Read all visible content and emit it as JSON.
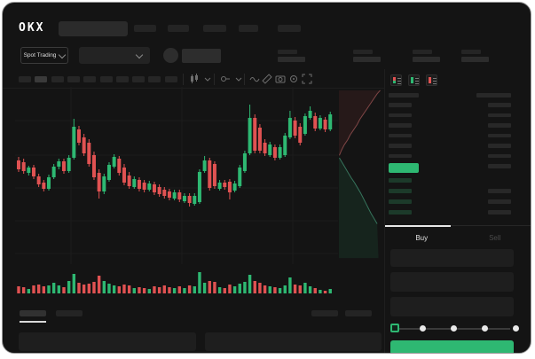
{
  "app": {
    "logo_text": "OKX"
  },
  "subnav": {
    "market_selector_label": "Spot Trading"
  },
  "order_book": {
    "view_modes": [
      "combined-book-icon",
      "bids-only-icon",
      "asks-only-icon"
    ],
    "ask_row_count": 7,
    "bid_row_count": 4,
    "tabs": {
      "buy_label": "Buy",
      "sell_label": "Sell"
    },
    "slider_stops": 5
  },
  "colors": {
    "green": "#2eb872",
    "red": "#e05252",
    "bid_row_green": "#1c3a2a",
    "depth_ask_line": "#a85a5a",
    "depth_bid_line": "#3f8a6d",
    "grid": "#1c1c1c"
  },
  "placeholders": {
    "topnav_items": 5,
    "stat_groups": 4,
    "timeframe_buttons": 10,
    "active_timeframe_index": 1
  },
  "chart_data": {
    "type": "candlestick",
    "title": "",
    "xlabel": "",
    "ylabel": "",
    "note": "no axis labels visible; values in relative price units, volume in relative units",
    "grid": true,
    "candles_ohlcv": [
      [
        122,
        126,
        109,
        112,
        8
      ],
      [
        120,
        124,
        107,
        110,
        7
      ],
      [
        108,
        116,
        105,
        114,
        5
      ],
      [
        114,
        117,
        101,
        104,
        9
      ],
      [
        104,
        107,
        92,
        95,
        10
      ],
      [
        97,
        100,
        87,
        90,
        8
      ],
      [
        90,
        106,
        88,
        103,
        9
      ],
      [
        103,
        118,
        101,
        115,
        12
      ],
      [
        115,
        124,
        112,
        121,
        9
      ],
      [
        121,
        124,
        107,
        110,
        7
      ],
      [
        110,
        128,
        108,
        125,
        14
      ],
      [
        125,
        169,
        123,
        160,
        22
      ],
      [
        157,
        161,
        139,
        142,
        12
      ],
      [
        148,
        152,
        127,
        130,
        10
      ],
      [
        142,
        146,
        115,
        118,
        11
      ],
      [
        128,
        132,
        100,
        103,
        13
      ],
      [
        108,
        112,
        79,
        87,
        20
      ],
      [
        87,
        107,
        84,
        104,
        14
      ],
      [
        100,
        120,
        98,
        117,
        11
      ],
      [
        115,
        129,
        113,
        126,
        9
      ],
      [
        124,
        127,
        105,
        108,
        8
      ],
      [
        114,
        118,
        94,
        97,
        10
      ],
      [
        105,
        109,
        90,
        93,
        9
      ],
      [
        92,
        104,
        90,
        101,
        6
      ],
      [
        100,
        103,
        87,
        90,
        7
      ],
      [
        97,
        100,
        86,
        89,
        6
      ],
      [
        89,
        99,
        87,
        96,
        5
      ],
      [
        95,
        98,
        83,
        86,
        8
      ],
      [
        92,
        95,
        81,
        84,
        7
      ],
      [
        89,
        92,
        79,
        82,
        9
      ],
      [
        87,
        90,
        77,
        80,
        7
      ],
      [
        79,
        89,
        77,
        86,
        6
      ],
      [
        86,
        89,
        75,
        78,
        8
      ],
      [
        76,
        85,
        74,
        82,
        6
      ],
      [
        82,
        85,
        70,
        74,
        9
      ],
      [
        73,
        85,
        71,
        82,
        8
      ],
      [
        75,
        112,
        73,
        109,
        24
      ],
      [
        110,
        127,
        108,
        122,
        12
      ],
      [
        122,
        125,
        88,
        91,
        14
      ],
      [
        118,
        121,
        90,
        93,
        13
      ],
      [
        90,
        100,
        88,
        97,
        7
      ],
      [
        97,
        100,
        89,
        92,
        6
      ],
      [
        98,
        101,
        78,
        86,
        10
      ],
      [
        88,
        99,
        86,
        96,
        8
      ],
      [
        93,
        117,
        91,
        114,
        11
      ],
      [
        110,
        133,
        108,
        130,
        13
      ],
      [
        130,
        185,
        128,
        170,
        21
      ],
      [
        170,
        174,
        130,
        133,
        14
      ],
      [
        159,
        163,
        130,
        133,
        12
      ],
      [
        142,
        146,
        127,
        130,
        9
      ],
      [
        128,
        143,
        126,
        140,
        8
      ],
      [
        137,
        140,
        122,
        125,
        7
      ],
      [
        125,
        140,
        123,
        137,
        6
      ],
      [
        128,
        153,
        126,
        150,
        9
      ],
      [
        148,
        178,
        146,
        170,
        18
      ],
      [
        167,
        171,
        147,
        150,
        10
      ],
      [
        160,
        164,
        139,
        142,
        9
      ],
      [
        152,
        175,
        150,
        172,
        12
      ],
      [
        170,
        183,
        168,
        178,
        8
      ],
      [
        172,
        176,
        155,
        158,
        6
      ],
      [
        158,
        173,
        156,
        170,
        4
      ],
      [
        168,
        171,
        154,
        157,
        3
      ],
      [
        157,
        177,
        155,
        174,
        5
      ]
    ],
    "depth_profile": {
      "asks_line_yx_frac": [
        [
          0.39,
          0.03
        ],
        [
          0.36,
          0.08
        ],
        [
          0.33,
          0.14
        ],
        [
          0.3,
          0.22
        ],
        [
          0.27,
          0.28
        ],
        [
          0.24,
          0.36
        ],
        [
          0.21,
          0.44
        ],
        [
          0.18,
          0.5
        ],
        [
          0.15,
          0.58
        ],
        [
          0.12,
          0.66
        ],
        [
          0.09,
          0.74
        ],
        [
          0.06,
          0.82
        ],
        [
          0.03,
          0.9
        ],
        [
          0.01,
          0.97
        ]
      ],
      "bids_line_yx_frac": [
        [
          0.405,
          0.03
        ],
        [
          0.43,
          0.09
        ],
        [
          0.46,
          0.16
        ],
        [
          0.49,
          0.23
        ],
        [
          0.52,
          0.3
        ],
        [
          0.55,
          0.38
        ],
        [
          0.58,
          0.45
        ],
        [
          0.61,
          0.52
        ],
        [
          0.64,
          0.58
        ],
        [
          0.67,
          0.64
        ],
        [
          0.7,
          0.7
        ],
        [
          0.73,
          0.76
        ],
        [
          0.76,
          0.83
        ],
        [
          0.79,
          0.9
        ]
      ]
    }
  }
}
